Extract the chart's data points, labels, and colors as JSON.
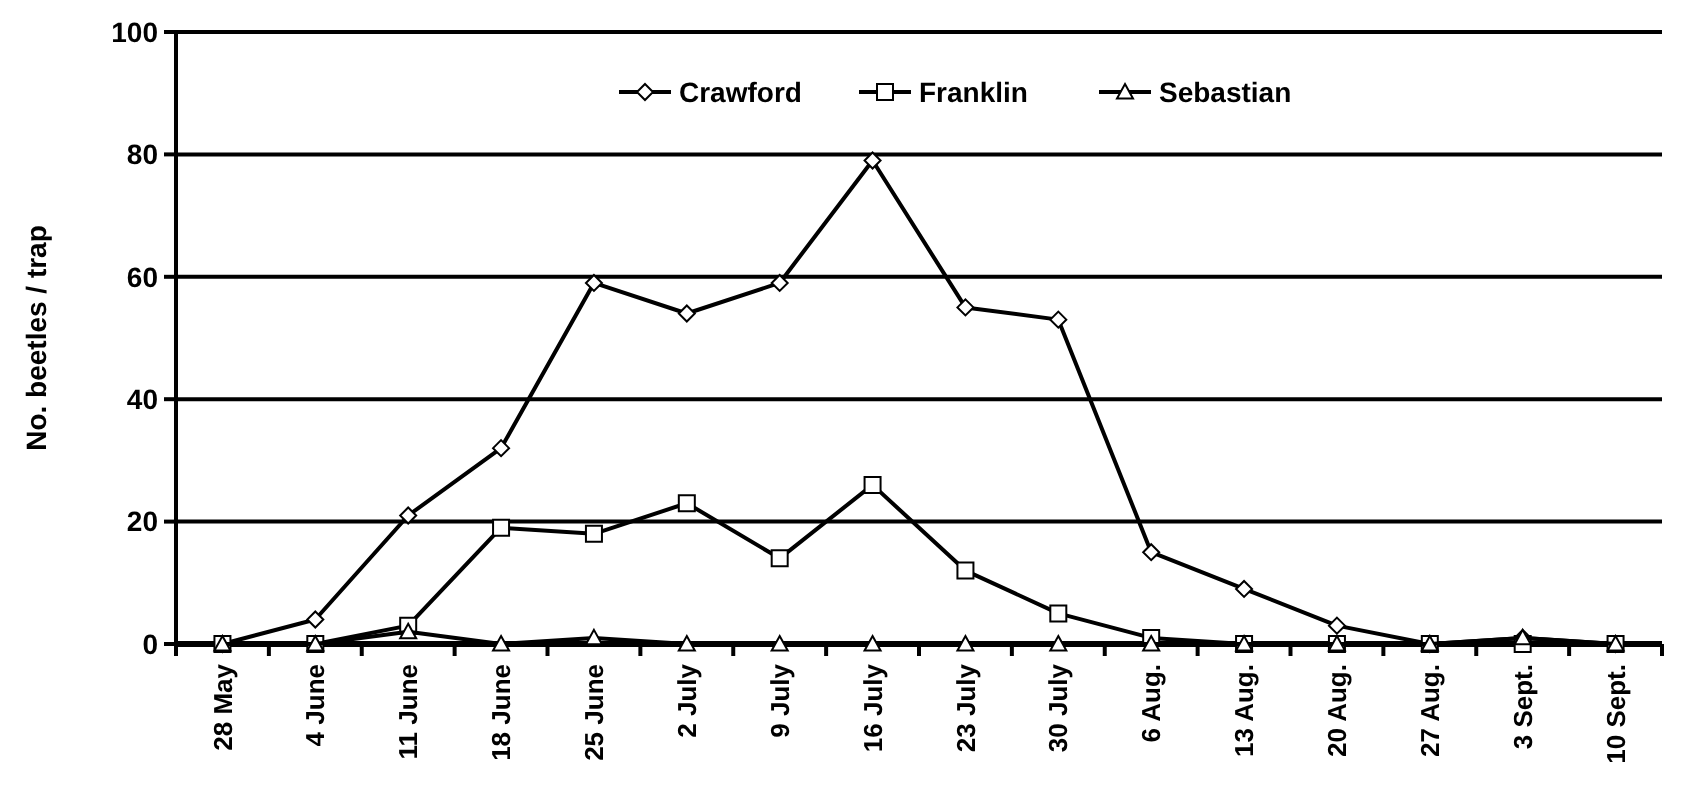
{
  "chart_data": {
    "type": "line",
    "ylabel": "No. beetles / trap",
    "categories": [
      "28 May",
      "4 June",
      "11 June",
      "18 June",
      "25 June",
      "2 July",
      "9 July",
      "16 July",
      "23 July",
      "30 July",
      "6 Aug.",
      "13 Aug.",
      "20 Aug.",
      "27 Aug.",
      "3 Sept.",
      "10 Sept."
    ],
    "series": [
      {
        "name": "Crawford",
        "color": "#000000",
        "marker": "diamond",
        "values": [
          0,
          4,
          21,
          32,
          59,
          54,
          59,
          79,
          55,
          53,
          15,
          9,
          3,
          0,
          1,
          0
        ]
      },
      {
        "name": "Franklin",
        "color": "#000000",
        "marker": "square",
        "values": [
          0,
          0,
          3,
          19,
          18,
          23,
          14,
          26,
          12,
          5,
          1,
          0,
          0,
          0,
          0,
          0
        ]
      },
      {
        "name": "Sebastian",
        "color": "#000000",
        "marker": "triangle",
        "values": [
          0,
          0,
          2,
          0,
          1,
          0,
          0,
          0,
          0,
          0,
          0,
          0,
          0,
          0,
          1,
          0
        ]
      }
    ],
    "ylim": [
      0,
      100
    ],
    "yticks": [
      0,
      20,
      40,
      60,
      80,
      100
    ],
    "grid": "y",
    "legend": "top",
    "line_style": "solid"
  }
}
